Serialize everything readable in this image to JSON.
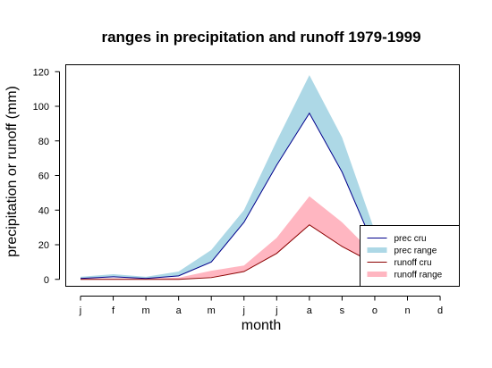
{
  "chart_data": {
    "type": "area",
    "title": "ranges in precipitation and runoff 1979-1999",
    "xlabel": "month",
    "ylabel": "precipitation or runoff (mm)",
    "categories": [
      "j",
      "f",
      "m",
      "a",
      "m",
      "j",
      "j",
      "a",
      "s",
      "o",
      "n",
      "d"
    ],
    "ylim": [
      -4,
      124
    ],
    "yticks": [
      0,
      20,
      40,
      60,
      80,
      100,
      120
    ],
    "grid": false,
    "legend_position": "bottom-right",
    "colors": {
      "prec_cru": "#00008b",
      "prec_range": "#add8e6",
      "runoff_cru": "#8b0000",
      "runoff_range": "#ffb6c1"
    },
    "series": [
      {
        "name": "prec cru",
        "kind": "line",
        "values": [
          0.5,
          1.5,
          0.5,
          2,
          10,
          33,
          66,
          96,
          62,
          18,
          null,
          null
        ]
      },
      {
        "name": "prec range",
        "kind": "band",
        "lower": [
          0.5,
          1.5,
          0.5,
          2,
          10,
          33,
          66,
          96,
          62,
          18,
          null,
          null
        ],
        "upper": [
          1.5,
          3,
          1.5,
          4.5,
          17,
          40,
          80,
          118,
          82,
          28,
          null,
          null
        ]
      },
      {
        "name": "runoff cru",
        "kind": "line",
        "values": [
          0,
          0,
          0,
          0,
          1,
          4.5,
          15,
          31.5,
          19,
          9,
          null,
          null
        ]
      },
      {
        "name": "runoff range",
        "kind": "band",
        "lower": [
          0,
          0,
          0,
          0,
          1,
          4.5,
          15,
          31.5,
          19,
          9,
          null,
          null
        ],
        "upper": [
          0.5,
          0.5,
          0.5,
          1,
          5,
          8,
          24,
          48,
          33,
          14,
          null,
          null
        ]
      }
    ]
  }
}
